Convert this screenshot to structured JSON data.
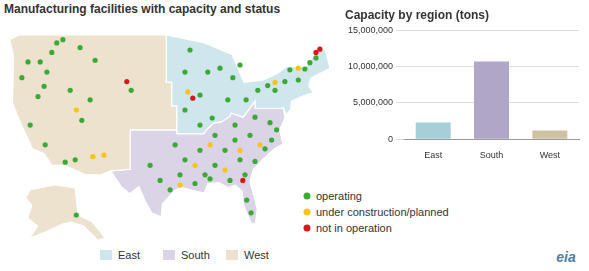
{
  "title": "Manufacturing facilities with capacity and status",
  "logo": "eia",
  "map": {
    "regions": [
      {
        "name": "East",
        "color": "#cfe6ec"
      },
      {
        "name": "South",
        "color": "#dad4e6"
      },
      {
        "name": "West",
        "color": "#ece2ce"
      }
    ],
    "status_legend": [
      {
        "label": "operating",
        "color": "#3aaa35"
      },
      {
        "label": "under construction/planned",
        "color": "#f5c518"
      },
      {
        "label": "not in operation",
        "color": "#d7191c"
      }
    ],
    "facilities": [
      {
        "lon": -116.2,
        "lat": 48.0,
        "status": "operating"
      },
      {
        "lon": -115.1,
        "lat": 48.4,
        "status": "operating"
      },
      {
        "lon": -117.1,
        "lat": 46.8,
        "status": "operating"
      },
      {
        "lon": -119.2,
        "lat": 45.6,
        "status": "operating"
      },
      {
        "lon": -121.4,
        "lat": 45.6,
        "status": "operating"
      },
      {
        "lon": -118.0,
        "lat": 44.3,
        "status": "operating"
      },
      {
        "lon": -118.5,
        "lat": 42.5,
        "status": "operating"
      },
      {
        "lon": -122.5,
        "lat": 43.6,
        "status": "operating"
      },
      {
        "lon": -119.6,
        "lat": 41.2,
        "status": "operating"
      },
      {
        "lon": -112.0,
        "lat": 47.4,
        "status": "operating"
      },
      {
        "lon": -109.3,
        "lat": 45.8,
        "status": "operating"
      },
      {
        "lon": -113.8,
        "lat": 42.0,
        "status": "operating"
      },
      {
        "lon": -110.2,
        "lat": 40.8,
        "status": "operating"
      },
      {
        "lon": -111.7,
        "lat": 38.2,
        "status": "operating"
      },
      {
        "lon": -121.0,
        "lat": 37.6,
        "status": "operating"
      },
      {
        "lon": -118.3,
        "lat": 35.1,
        "status": "operating"
      },
      {
        "lon": -114.7,
        "lat": 32.9,
        "status": "operating"
      },
      {
        "lon": -112.9,
        "lat": 33.2,
        "status": "operating"
      },
      {
        "lon": -102.8,
        "lat": 42.0,
        "status": "operating"
      },
      {
        "lon": -112.7,
        "lat": 39.5,
        "status": "under construction/planned"
      },
      {
        "lon": -109.7,
        "lat": 33.6,
        "status": "under construction/planned"
      },
      {
        "lon": -107.7,
        "lat": 33.8,
        "status": "under construction/planned"
      },
      {
        "lon": -103.6,
        "lat": 43.1,
        "status": "not in operation"
      },
      {
        "lon": -151.0,
        "lat": 61.0,
        "status": "operating"
      },
      {
        "lon": -92.2,
        "lat": 47.1,
        "status": "operating"
      },
      {
        "lon": -93.1,
        "lat": 44.3,
        "status": "operating"
      },
      {
        "lon": -90.4,
        "lat": 41.4,
        "status": "operating"
      },
      {
        "lon": -89.0,
        "lat": 44.3,
        "status": "operating"
      },
      {
        "lon": -86.8,
        "lat": 44.8,
        "status": "operating"
      },
      {
        "lon": -84.5,
        "lat": 43.6,
        "status": "operating"
      },
      {
        "lon": -83.2,
        "lat": 45.2,
        "status": "operating"
      },
      {
        "lon": -85.4,
        "lat": 40.8,
        "status": "operating"
      },
      {
        "lon": -82.1,
        "lat": 40.8,
        "status": "operating"
      },
      {
        "lon": -88.2,
        "lat": 38.5,
        "status": "operating"
      },
      {
        "lon": -90.4,
        "lat": 37.6,
        "status": "operating"
      },
      {
        "lon": -93.1,
        "lat": 39.5,
        "status": "operating"
      },
      {
        "lon": -80.0,
        "lat": 42.0,
        "status": "operating"
      },
      {
        "lon": -78.2,
        "lat": 42.6,
        "status": "operating"
      },
      {
        "lon": -75.1,
        "lat": 43.1,
        "status": "operating"
      },
      {
        "lon": -74.2,
        "lat": 44.6,
        "status": "operating"
      },
      {
        "lon": -71.5,
        "lat": 44.7,
        "status": "operating"
      },
      {
        "lon": -70.6,
        "lat": 45.5,
        "status": "operating"
      },
      {
        "lon": -72.7,
        "lat": 43.3,
        "status": "operating"
      },
      {
        "lon": -76.9,
        "lat": 42.0,
        "status": "operating"
      },
      {
        "lon": -69.5,
        "lat": 46.1,
        "status": "operating"
      },
      {
        "lon": -72.7,
        "lat": 44.8,
        "status": "under construction/planned"
      },
      {
        "lon": -76.9,
        "lat": 43.0,
        "status": "under construction/planned"
      },
      {
        "lon": -92.6,
        "lat": 41.8,
        "status": "under construction/planned"
      },
      {
        "lon": -91.7,
        "lat": 41.0,
        "status": "not in operation"
      },
      {
        "lon": -69.5,
        "lat": 46.8,
        "status": "not in operation"
      },
      {
        "lon": -68.8,
        "lat": 47.2,
        "status": "not in operation"
      },
      {
        "lon": -94.0,
        "lat": 31.3,
        "status": "operating"
      },
      {
        "lon": -93.1,
        "lat": 33.2,
        "status": "operating"
      },
      {
        "lon": -95.8,
        "lat": 29.4,
        "status": "operating"
      },
      {
        "lon": -91.3,
        "lat": 30.2,
        "status": "operating"
      },
      {
        "lon": -89.5,
        "lat": 31.3,
        "status": "operating"
      },
      {
        "lon": -87.7,
        "lat": 32.5,
        "status": "operating"
      },
      {
        "lon": -85.0,
        "lat": 30.6,
        "status": "operating"
      },
      {
        "lon": -82.3,
        "lat": 31.3,
        "status": "operating"
      },
      {
        "lon": -80.5,
        "lat": 33.0,
        "status": "operating"
      },
      {
        "lon": -78.7,
        "lat": 34.6,
        "status": "operating"
      },
      {
        "lon": -77.5,
        "lat": 35.7,
        "status": "operating"
      },
      {
        "lon": -76.6,
        "lat": 37.0,
        "status": "operating"
      },
      {
        "lon": -77.8,
        "lat": 37.9,
        "status": "operating"
      },
      {
        "lon": -81.4,
        "lat": 36.3,
        "status": "operating"
      },
      {
        "lon": -84.1,
        "lat": 35.7,
        "status": "operating"
      },
      {
        "lon": -85.9,
        "lat": 34.4,
        "status": "operating"
      },
      {
        "lon": -90.4,
        "lat": 34.4,
        "status": "operating"
      },
      {
        "lon": -87.7,
        "lat": 36.3,
        "status": "operating"
      },
      {
        "lon": -84.1,
        "lat": 37.6,
        "status": "operating"
      },
      {
        "lon": -80.5,
        "lat": 38.6,
        "status": "operating"
      },
      {
        "lon": -82.0,
        "lat": 28.1,
        "status": "operating"
      },
      {
        "lon": -81.2,
        "lat": 26.5,
        "status": "operating"
      },
      {
        "lon": -83.2,
        "lat": 33.2,
        "status": "operating"
      },
      {
        "lon": -97.6,
        "lat": 30.6,
        "status": "operating"
      },
      {
        "lon": -99.4,
        "lat": 32.5,
        "status": "operating"
      },
      {
        "lon": -94.9,
        "lat": 35.1,
        "status": "operating"
      },
      {
        "lon": -88.6,
        "lat": 30.8,
        "status": "operating"
      },
      {
        "lon": -88.6,
        "lat": 35.1,
        "status": "under construction/planned"
      },
      {
        "lon": -85.9,
        "lat": 31.9,
        "status": "under construction/planned"
      },
      {
        "lon": -83.2,
        "lat": 34.4,
        "status": "under construction/planned"
      },
      {
        "lon": -79.6,
        "lat": 35.1,
        "status": "under construction/planned"
      },
      {
        "lon": -91.3,
        "lat": 32.5,
        "status": "under construction/planned"
      },
      {
        "lon": -94.0,
        "lat": 30.0,
        "status": "under construction/planned"
      },
      {
        "lon": -82.7,
        "lat": 30.6,
        "status": "not in operation"
      }
    ]
  },
  "chart_data": {
    "type": "bar",
    "title": "Capacity by region (tons)",
    "categories": [
      "East",
      "South",
      "West"
    ],
    "values": [
      2300000,
      10700000,
      1200000
    ],
    "colors": [
      "#a6cfd9",
      "#b0a6c8",
      "#cfc2a4"
    ],
    "ylim": [
      0,
      15000000
    ],
    "yticks": [
      0,
      {
        "value": 5000000,
        "label": "5,000,000"
      },
      {
        "value": 10000000,
        "label": "10,000,000"
      },
      {
        "value": 15000000,
        "label": "15,000,000"
      }
    ],
    "grid": true
  }
}
